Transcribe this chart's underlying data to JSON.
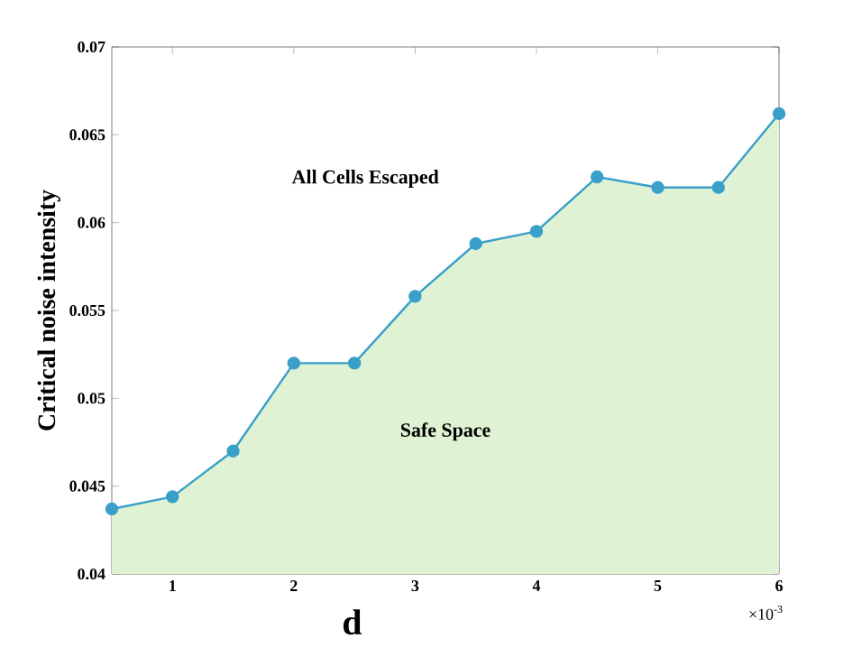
{
  "chart_data": {
    "type": "area",
    "xlabel": "d",
    "ylabel": "Critical noise intensity",
    "annotations": [
      "All Cells Escaped",
      "Safe Space",
      "×10$^{-3}$"
    ],
    "x": [
      0.5,
      1,
      1.5,
      2,
      2.5,
      3,
      3.5,
      4,
      4.5,
      5,
      5.5,
      6
    ],
    "series": [
      {
        "color": "#3a9fc9",
        "values": [
          0.0437,
          0.0444,
          0.047,
          0.052,
          0.052,
          0.0558,
          0.0588,
          0.0595,
          0.0626,
          0.062,
          0.062,
          0.0662
        ]
      }
    ],
    "xlim": [
      0.5,
      6
    ],
    "xticks": [
      1,
      2,
      3,
      4,
      5,
      6
    ],
    "ylim": [
      0.04,
      0.07
    ],
    "yticks": [
      0.04,
      0.045,
      0.05,
      0.055,
      0.06,
      0.065,
      0.07
    ],
    "marker": "circle",
    "line_style": "solid",
    "grid": false
  }
}
